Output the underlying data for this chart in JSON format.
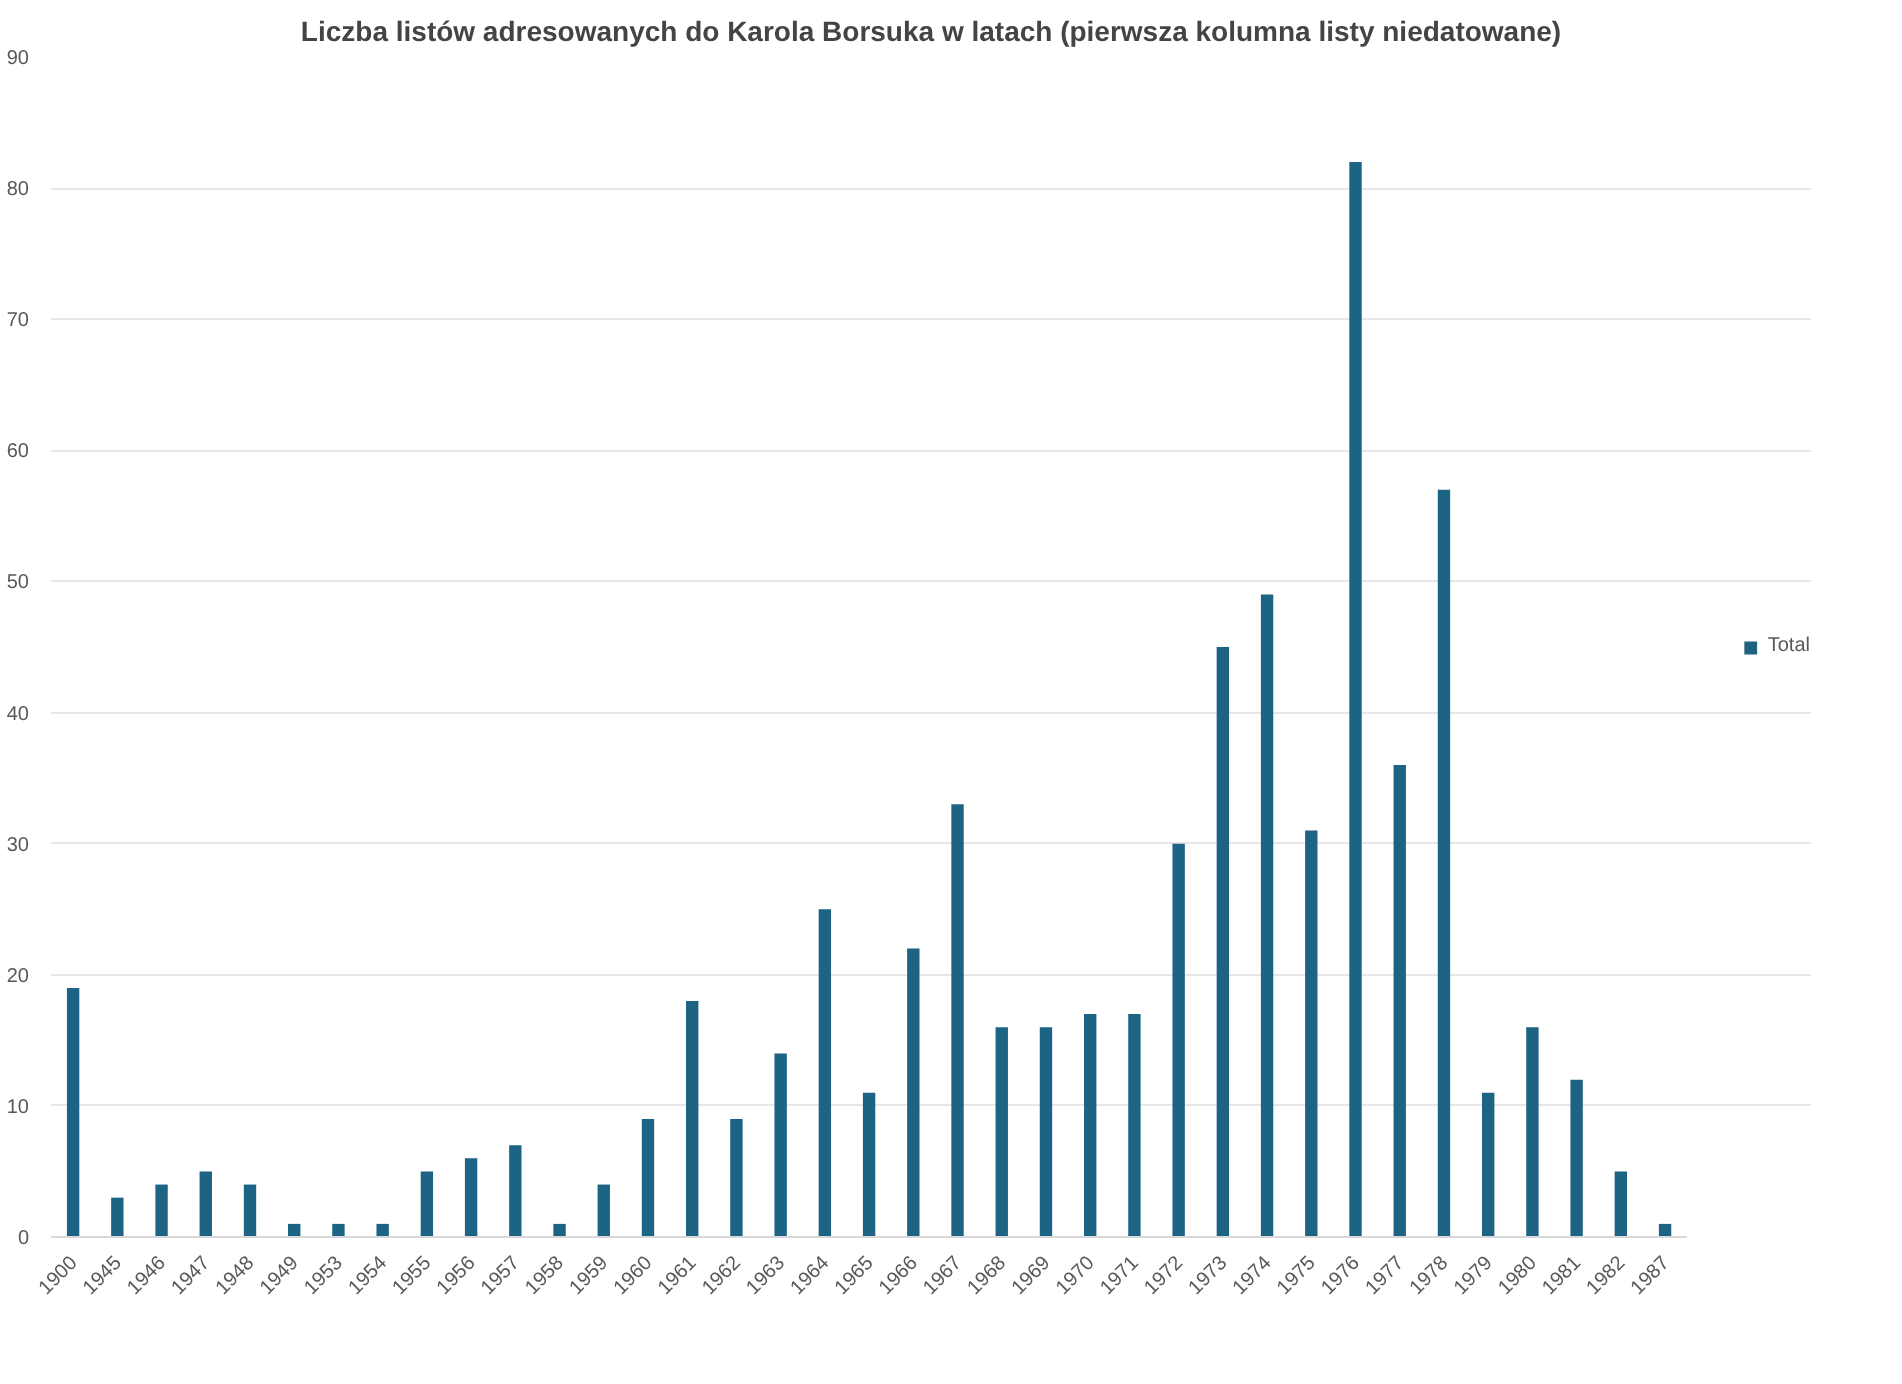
{
  "chart_data": {
    "type": "bar",
    "title": "Liczba listów adresowanych do Karola Borsuka w latach (pierwsza kolumna listy niedatowane)",
    "categories": [
      "1900",
      "1945",
      "1946",
      "1947",
      "1948",
      "1949",
      "1953",
      "1954",
      "1955",
      "1956",
      "1957",
      "1958",
      "1959",
      "1960",
      "1961",
      "1962",
      "1963",
      "1964",
      "1965",
      "1966",
      "1967",
      "1968",
      "1969",
      "1970",
      "1971",
      "1972",
      "1973",
      "1974",
      "1975",
      "1976",
      "1977",
      "1978",
      "1979",
      "1980",
      "1981",
      "1982",
      "1987"
    ],
    "series": [
      {
        "name": "Total",
        "color": "#1d6384",
        "values": [
          19,
          3,
          4,
          5,
          4,
          1,
          1,
          1,
          5,
          6,
          7,
          1,
          4,
          9,
          18,
          9,
          14,
          25,
          11,
          22,
          33,
          16,
          16,
          17,
          17,
          30,
          45,
          49,
          31,
          82,
          36,
          57,
          11,
          16,
          12,
          5,
          1
        ]
      }
    ],
    "ylim": [
      0,
      90
    ],
    "yticks": [
      0,
      10,
      20,
      30,
      40,
      50,
      60,
      70,
      80,
      90
    ],
    "grid": "y",
    "legend": "right"
  }
}
